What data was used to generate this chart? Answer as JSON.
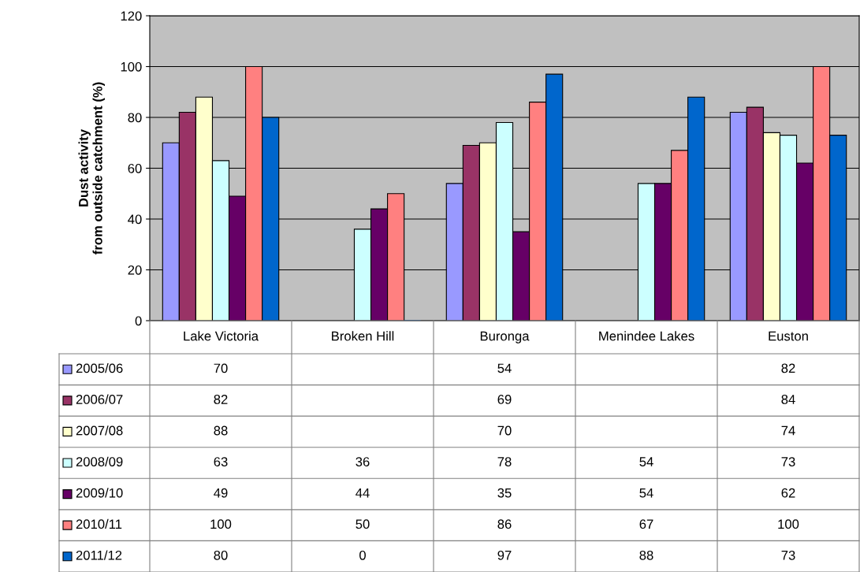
{
  "chart_data": {
    "type": "bar",
    "ylabel": "Dust activity\nfrom outside catchment (%)",
    "categories": [
      "Lake Victoria",
      "Broken Hill",
      "Buronga",
      "Menindee Lakes",
      "Euston"
    ],
    "series": [
      {
        "name": "2005/06",
        "color": "#9999ff",
        "values": [
          70,
          null,
          54,
          null,
          82
        ]
      },
      {
        "name": "2006/07",
        "color": "#993366",
        "values": [
          82,
          null,
          69,
          null,
          84
        ]
      },
      {
        "name": "2007/08",
        "color": "#ffffcc",
        "values": [
          88,
          null,
          70,
          null,
          74
        ]
      },
      {
        "name": "2008/09",
        "color": "#ccffff",
        "values": [
          63,
          36,
          78,
          54,
          73
        ]
      },
      {
        "name": "2009/10",
        "color": "#660066",
        "values": [
          49,
          44,
          35,
          54,
          62
        ]
      },
      {
        "name": "2010/11",
        "color": "#ff8080",
        "values": [
          100,
          50,
          86,
          67,
          100
        ]
      },
      {
        "name": "2011/12",
        "color": "#0066cc",
        "values": [
          80,
          0,
          97,
          88,
          73
        ]
      }
    ],
    "ylim": [
      0,
      120
    ],
    "yticks": [
      0,
      20,
      40,
      60,
      80,
      100,
      120
    ],
    "grid": "y",
    "legend": "bottom",
    "data_labels": true
  }
}
